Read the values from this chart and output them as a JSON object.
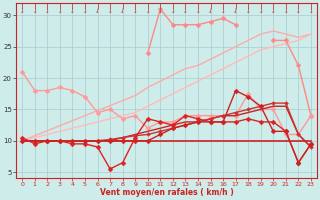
{
  "xlabel": "Vent moyen/en rafales ( km/h )",
  "xlim": [
    -0.5,
    23.5
  ],
  "ylim": [
    4,
    32
  ],
  "yticks": [
    5,
    10,
    15,
    20,
    25,
    30
  ],
  "xticks": [
    0,
    1,
    2,
    3,
    4,
    5,
    6,
    7,
    8,
    9,
    10,
    11,
    12,
    13,
    14,
    15,
    16,
    17,
    18,
    19,
    20,
    21,
    22,
    23
  ],
  "bg_color": "#ceecea",
  "grid_color": "#aacccc",
  "series": [
    {
      "x": [
        0,
        1,
        2,
        3,
        4,
        5,
        6,
        7,
        8,
        9,
        10,
        11,
        12,
        13,
        14,
        15,
        16,
        17,
        18,
        19,
        20,
        21,
        22,
        23
      ],
      "y": [
        null,
        null,
        null,
        null,
        null,
        null,
        null,
        null,
        null,
        null,
        24,
        31,
        28.5,
        28.5,
        28.5,
        29,
        29.5,
        28.5,
        null,
        null,
        26,
        26,
        22,
        14
      ],
      "color": "#ff8888",
      "lw": 1.0,
      "marker": "D",
      "ms": 2.5,
      "zorder": 3
    },
    {
      "x": [
        0,
        1,
        2,
        3,
        4,
        5,
        6,
        7,
        8,
        9,
        10,
        11,
        12,
        13,
        14,
        15,
        16,
        17,
        18,
        19,
        20,
        21,
        22,
        23
      ],
      "y": [
        10,
        10.8,
        11.6,
        12.4,
        13.2,
        14,
        14.8,
        15.6,
        16.4,
        17.2,
        18.5,
        19.5,
        20.5,
        21.5,
        22,
        23,
        24,
        25,
        26,
        27,
        27.5,
        27,
        26.5,
        27
      ],
      "color": "#ffaaaa",
      "lw": 1.0,
      "marker": null,
      "ms": 0,
      "zorder": 2
    },
    {
      "x": [
        0,
        1,
        2,
        3,
        4,
        5,
        6,
        7,
        8,
        9,
        10,
        11,
        12,
        13,
        14,
        15,
        16,
        17,
        18,
        19,
        20,
        21,
        22,
        23
      ],
      "y": [
        10,
        10.5,
        11,
        11.5,
        12,
        12.5,
        13,
        13.5,
        14,
        14.5,
        15.5,
        16.5,
        17.5,
        18.5,
        19.5,
        20.5,
        21.5,
        22.5,
        23.5,
        24.5,
        25,
        25.5,
        26,
        27
      ],
      "color": "#ffbbbb",
      "lw": 1.0,
      "marker": null,
      "ms": 0,
      "zorder": 2
    },
    {
      "x": [
        0,
        1,
        2,
        3,
        4,
        5,
        6,
        7,
        8,
        9,
        10,
        11,
        12,
        13,
        14,
        15,
        16,
        17,
        18,
        19,
        20,
        21,
        22,
        23
      ],
      "y": [
        21,
        18,
        18,
        18.5,
        18,
        17,
        14.5,
        15,
        13.5,
        14,
        12,
        13,
        13,
        14,
        14,
        14,
        14,
        14,
        17.5,
        15,
        15,
        11,
        11,
        14
      ],
      "color": "#ff9999",
      "lw": 1.0,
      "marker": "D",
      "ms": 2.5,
      "zorder": 3
    },
    {
      "x": [
        0,
        1,
        2,
        3,
        4,
        5,
        6,
        7,
        8,
        9,
        10,
        11,
        12,
        13,
        14,
        15,
        16,
        17,
        18,
        19,
        20,
        21,
        22,
        23
      ],
      "y": [
        10,
        10,
        10,
        10,
        10,
        10,
        10,
        10,
        10,
        10,
        10,
        10,
        10,
        10,
        10,
        10,
        10,
        10,
        10,
        10,
        10,
        10,
        10,
        10
      ],
      "color": "#cc2222",
      "lw": 1.2,
      "marker": null,
      "ms": 0,
      "zorder": 6
    },
    {
      "x": [
        0,
        1,
        2,
        3,
        4,
        5,
        6,
        7,
        8,
        9,
        10,
        11,
        12,
        13,
        14,
        15,
        16,
        17,
        18,
        19,
        20,
        21,
        22,
        23
      ],
      "y": [
        10,
        10,
        10,
        10,
        10,
        10,
        10,
        10,
        10.5,
        11,
        11.5,
        12,
        12.5,
        13,
        13,
        13.5,
        14,
        14,
        14.5,
        15,
        15.5,
        15.5,
        11,
        9
      ],
      "color": "#cc2222",
      "lw": 1.0,
      "marker": null,
      "ms": 0,
      "zorder": 5
    },
    {
      "x": [
        0,
        1,
        2,
        3,
        4,
        5,
        6,
        7,
        8,
        9,
        10,
        11,
        12,
        13,
        14,
        15,
        16,
        17,
        18,
        19,
        20,
        21,
        22,
        23
      ],
      "y": [
        10,
        10,
        10,
        10,
        10,
        10,
        10,
        10.2,
        10.5,
        10.8,
        11,
        11.5,
        12,
        12.5,
        13,
        13.5,
        14,
        14.5,
        15,
        15.5,
        16,
        16,
        11,
        9
      ],
      "color": "#cc3333",
      "lw": 1.0,
      "marker": "D",
      "ms": 2.0,
      "zorder": 5
    },
    {
      "x": [
        0,
        1,
        2,
        3,
        4,
        5,
        6,
        7,
        8,
        9,
        10,
        11,
        12,
        13,
        14,
        15,
        16,
        17,
        18,
        19,
        20,
        21,
        22,
        23
      ],
      "y": [
        10.5,
        9.5,
        10,
        10,
        9.5,
        9.5,
        9,
        5.5,
        6.5,
        10.5,
        13.5,
        13,
        12.5,
        14,
        13.5,
        13,
        13,
        13,
        13.5,
        13,
        13,
        11.5,
        6.5,
        9.5
      ],
      "color": "#dd2222",
      "lw": 1.0,
      "marker": "D",
      "ms": 2.5,
      "zorder": 7
    },
    {
      "x": [
        0,
        1,
        2,
        3,
        4,
        5,
        6,
        7,
        8,
        9,
        10,
        11,
        12,
        13,
        14,
        15,
        16,
        17,
        18,
        19,
        20,
        21,
        22,
        23
      ],
      "y": [
        10,
        10,
        10,
        10,
        10,
        10,
        10,
        10,
        10,
        10,
        10,
        11,
        12,
        12.5,
        13,
        13,
        13,
        18,
        17,
        15.5,
        11.5,
        11.5,
        6.5,
        9.5
      ],
      "color": "#cc2222",
      "lw": 1.0,
      "marker": "D",
      "ms": 2.5,
      "zorder": 7
    }
  ]
}
